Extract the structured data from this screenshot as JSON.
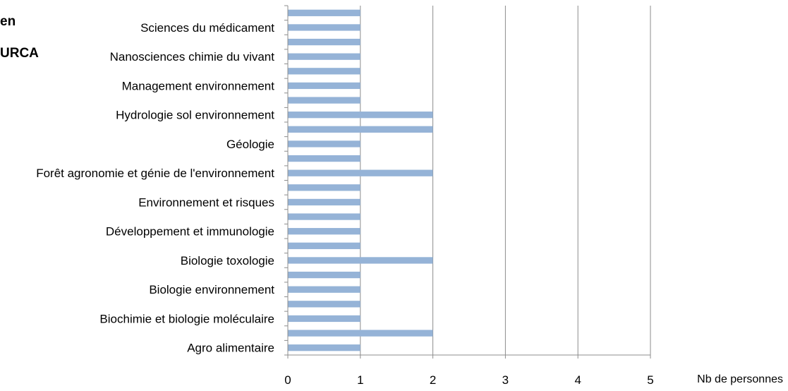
{
  "title_fragments": [
    "en",
    "URCA"
  ],
  "colors": {
    "bar": "#95b3d7",
    "grid": "#8c8c8c",
    "axis": "#8c8c8c",
    "text": "#000000"
  },
  "chart_data": {
    "type": "bar",
    "orientation": "horizontal",
    "xlabel": "Nb de personnes",
    "ylabel": "",
    "xlim": [
      0,
      5
    ],
    "x_ticks": [
      0,
      1,
      2,
      3,
      4,
      5
    ],
    "grid": "vertical",
    "legend": "none",
    "categories": [
      "Agro alimentaire",
      "",
      "Biochimie et biologie moléculaire",
      "",
      "Biologie environnement",
      "",
      "Biologie toxologie",
      "",
      "Développement et immunologie",
      "",
      "Environnement et risques",
      "",
      "Forêt agronomie et génie de l'environnement",
      "",
      "Géologie",
      "",
      "Hydrologie sol environnement",
      "",
      "Management environnement",
      "",
      "Nanosciences chimie du vivant",
      "",
      "Sciences du médicament",
      ""
    ],
    "values": [
      1,
      2,
      1,
      1,
      1,
      1,
      2,
      1,
      1,
      1,
      1,
      1,
      2,
      1,
      1,
      2,
      2,
      1,
      1,
      1,
      1,
      1,
      1,
      1
    ]
  }
}
